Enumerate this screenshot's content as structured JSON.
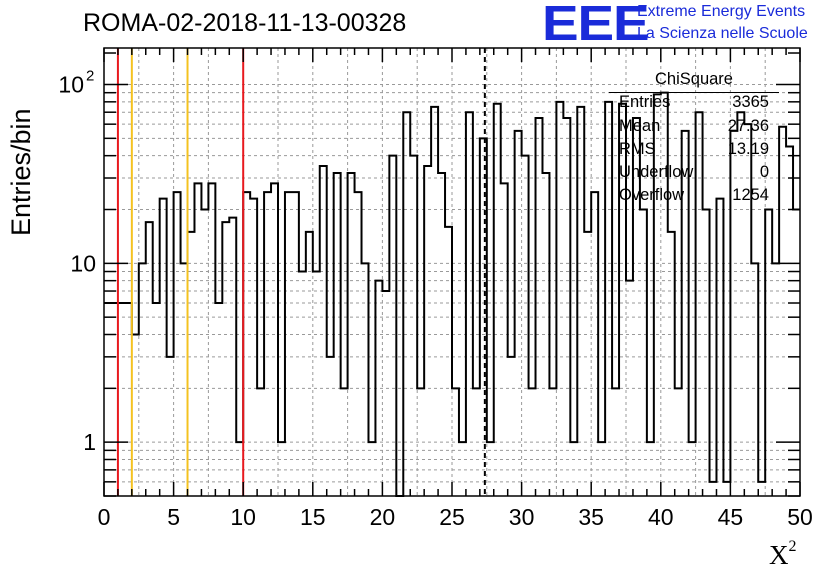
{
  "chart_data": {
    "type": "bar",
    "title": "ROMA-02-2018-11-13-00328",
    "xlabel": "X",
    "xlabel_superscript": "2",
    "ylabel": "Entries/bin",
    "xlim": [
      0,
      50
    ],
    "ylim": [
      0.5,
      160
    ],
    "y_scale": "log",
    "grid": true,
    "x_ticks": [
      "0",
      "5",
      "10",
      "15",
      "20",
      "25",
      "30",
      "35",
      "40",
      "45",
      "50"
    ],
    "y_ticks": [
      {
        "value": 1,
        "label": "1"
      },
      {
        "value": 10,
        "label": "10"
      },
      {
        "value": 100,
        "label": "10",
        "exponent": "2"
      }
    ],
    "bin_width": 0.5,
    "values": [
      6,
      6,
      6,
      6,
      4,
      10,
      17,
      6,
      23,
      3,
      25,
      10,
      15,
      28,
      20,
      28,
      6,
      17,
      18,
      1,
      25,
      23,
      2,
      25,
      28,
      1,
      25,
      25,
      9,
      15,
      9,
      35,
      3,
      32,
      2,
      32,
      25,
      10,
      1,
      8,
      7,
      40,
      0.1,
      70,
      40,
      2,
      35,
      75,
      32,
      16,
      2,
      1,
      70,
      2,
      50,
      1,
      78,
      28,
      3,
      55,
      40,
      2,
      65,
      32,
      2,
      80,
      65,
      1,
      75,
      15,
      25,
      1,
      80,
      2,
      78,
      8,
      65,
      20,
      1,
      88,
      90,
      15,
      2,
      55,
      1,
      70,
      20,
      0.6,
      23,
      0.6,
      55,
      70,
      60,
      10,
      0.6,
      20,
      10,
      58,
      45,
      20
    ],
    "vertical_lines": [
      {
        "x": 1,
        "color": "#e8191e",
        "style": "solid"
      },
      {
        "x": 2,
        "color": "#f4c220",
        "style": "solid"
      },
      {
        "x": 6,
        "color": "#f4c220",
        "style": "solid"
      },
      {
        "x": 10,
        "color": "#e8191e",
        "style": "solid"
      },
      {
        "x": 27.36,
        "color": "#000000",
        "style": "dashed"
      }
    ]
  },
  "logo": {
    "mark": "EEE",
    "line1": "Extreme Energy Events",
    "line2": "La Scienza nelle Scuole",
    "color": "#1a2bd9"
  },
  "stats": {
    "title": "ChiSquare",
    "rows": [
      {
        "key": "Entries",
        "value": "3365"
      },
      {
        "key": "Mean",
        "value": "27.36"
      },
      {
        "key": "RMS",
        "value": "13.19"
      },
      {
        "key": "Underflow",
        "value": "0"
      },
      {
        "key": "Overflow",
        "value": "1254"
      }
    ]
  }
}
